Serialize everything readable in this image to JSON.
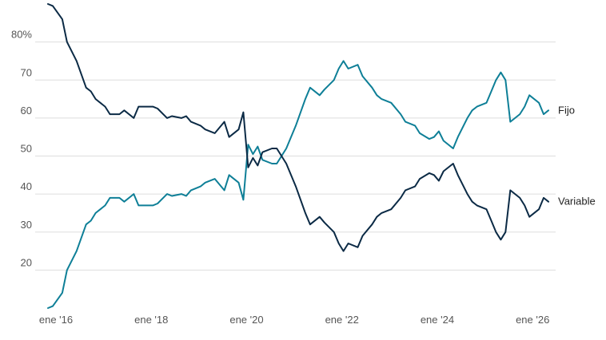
{
  "chart_data": {
    "type": "line",
    "title": "",
    "xlabel": "",
    "ylabel": "",
    "grid": "horizontal",
    "legend": "direct labels at line ends",
    "ylim": [
      10,
      90
    ],
    "xlim": [
      2016.0,
      2026.9
    ],
    "y_ticks": [
      {
        "value": 80,
        "label": "80%"
      },
      {
        "value": 70,
        "label": "70"
      },
      {
        "value": 60,
        "label": "60"
      },
      {
        "value": 50,
        "label": "50"
      },
      {
        "value": 40,
        "label": "40"
      },
      {
        "value": 30,
        "label": "30"
      },
      {
        "value": 20,
        "label": "20"
      }
    ],
    "x_ticks": [
      {
        "value": 2016.0,
        "label": "ene '16"
      },
      {
        "value": 2018.0,
        "label": "ene '18"
      },
      {
        "value": 2020.0,
        "label": "ene '20"
      },
      {
        "value": 2022.0,
        "label": "ene '22"
      },
      {
        "value": 2024.0,
        "label": "ene '24"
      },
      {
        "value": 2026.0,
        "label": "ene '26"
      }
    ],
    "series": [
      {
        "name": "Fijo",
        "color": "#0e7f97",
        "x": [
          2016.0,
          2016.1,
          2016.3,
          2016.4,
          2016.6,
          2016.8,
          2016.9,
          2017.0,
          2017.2,
          2017.3,
          2017.5,
          2017.6,
          2017.8,
          2017.9,
          2018.0,
          2018.2,
          2018.3,
          2018.5,
          2018.6,
          2018.8,
          2018.9,
          2019.0,
          2019.2,
          2019.3,
          2019.5,
          2019.7,
          2019.8,
          2020.0,
          2020.1,
          2020.2,
          2020.3,
          2020.4,
          2020.5,
          2020.7,
          2020.8,
          2021.0,
          2021.2,
          2021.4,
          2021.5,
          2021.7,
          2021.8,
          2022.0,
          2022.1,
          2022.2,
          2022.3,
          2022.5,
          2022.6,
          2022.8,
          2022.9,
          2023.0,
          2023.2,
          2023.4,
          2023.5,
          2023.7,
          2023.8,
          2024.0,
          2024.1,
          2024.2,
          2024.3,
          2024.5,
          2024.6,
          2024.8,
          2024.9,
          2025.0,
          2025.2,
          2025.3,
          2025.4,
          2025.5,
          2025.6,
          2025.7,
          2025.9,
          2026.0,
          2026.1,
          2026.3,
          2026.4,
          2026.5
        ],
        "y": [
          10,
          10.5,
          14,
          20,
          25,
          32,
          33,
          35,
          37,
          39,
          39,
          38,
          40,
          37,
          37,
          37,
          37.5,
          40,
          39.5,
          40,
          39.5,
          41,
          42,
          43,
          44,
          41,
          45,
          43,
          38.5,
          53,
          50.5,
          52.5,
          49,
          48,
          48,
          52,
          58,
          65,
          68,
          66,
          67.5,
          70,
          73,
          75,
          73,
          74,
          71,
          68,
          66,
          65,
          64,
          61,
          59,
          58,
          56,
          54.5,
          55,
          56.5,
          54,
          52,
          55,
          60,
          62,
          63,
          64,
          67,
          70,
          72,
          70,
          59,
          61,
          63,
          66,
          64,
          61,
          62
        ]
      },
      {
        "name": "Variable",
        "color": "#0b2a45",
        "x": [
          2016.0,
          2016.1,
          2016.3,
          2016.4,
          2016.6,
          2016.8,
          2016.9,
          2017.0,
          2017.2,
          2017.3,
          2017.5,
          2017.6,
          2017.8,
          2017.9,
          2018.0,
          2018.2,
          2018.3,
          2018.5,
          2018.6,
          2018.8,
          2018.9,
          2019.0,
          2019.2,
          2019.3,
          2019.5,
          2019.7,
          2019.8,
          2020.0,
          2020.1,
          2020.2,
          2020.3,
          2020.4,
          2020.5,
          2020.7,
          2020.8,
          2021.0,
          2021.2,
          2021.4,
          2021.5,
          2021.7,
          2021.8,
          2022.0,
          2022.1,
          2022.2,
          2022.3,
          2022.5,
          2022.6,
          2022.8,
          2022.9,
          2023.0,
          2023.2,
          2023.4,
          2023.5,
          2023.7,
          2023.8,
          2024.0,
          2024.1,
          2024.2,
          2024.3,
          2024.5,
          2024.6,
          2024.8,
          2024.9,
          2025.0,
          2025.2,
          2025.3,
          2025.4,
          2025.5,
          2025.6,
          2025.7,
          2025.9,
          2026.0,
          2026.1,
          2026.3,
          2026.4,
          2026.5
        ],
        "y": [
          90,
          89.5,
          86,
          80,
          75,
          68,
          67,
          65,
          63,
          61,
          61,
          62,
          60,
          63,
          63,
          63,
          62.5,
          60,
          60.5,
          60,
          60.5,
          59,
          58,
          57,
          56,
          59,
          55,
          57,
          61.5,
          47,
          49.5,
          47.5,
          51,
          52,
          52,
          48,
          42,
          35,
          32,
          34,
          32.5,
          30,
          27,
          25,
          27,
          26,
          29,
          32,
          34,
          35,
          36,
          39,
          41,
          42,
          44,
          45.5,
          45,
          43.5,
          46,
          48,
          45,
          40,
          38,
          37,
          36,
          33,
          30,
          28,
          30,
          41,
          39,
          37,
          34,
          36,
          39,
          38
        ]
      }
    ]
  }
}
